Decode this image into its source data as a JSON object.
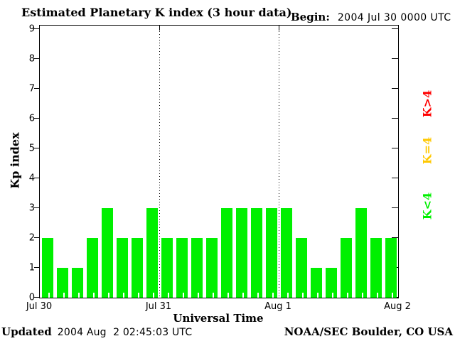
{
  "title": "Estimated Planetary K index (3 hour data)",
  "begin": {
    "label": "Begin:",
    "value": "2004 Jul 30 0000 UTC"
  },
  "footer": {
    "updated_label": "Updated",
    "updated_value": "2004 Aug  2 02:45:03 UTC",
    "credit": "NOAA/SEC Boulder, CO USA"
  },
  "chart_data": {
    "type": "bar",
    "title": "Estimated Planetary K index (3 hour data)",
    "xlabel": "Universal Time",
    "ylabel": "Kp index",
    "ylim": [
      0,
      9
    ],
    "yticks": [
      0,
      1,
      2,
      3,
      4,
      5,
      6,
      7,
      8,
      9
    ],
    "xticks": [
      "Jul 30",
      "Jul 31",
      "Aug 1",
      "Aug 2"
    ],
    "begin_utc": "2004 Jul 30 0000 UTC",
    "interval_hours": 3,
    "values": [
      2,
      1,
      1,
      2,
      3,
      2,
      2,
      3,
      2,
      2,
      2,
      2,
      3,
      3,
      3,
      3,
      3,
      2,
      1,
      1,
      2,
      3,
      2,
      2
    ],
    "bar_color": "#00f000",
    "grid": "dotted vertical lines at day boundaries",
    "legend_position": "right",
    "legend": [
      {
        "label": "K>4",
        "color": "#ff0000"
      },
      {
        "label": "K=4",
        "color": "#ffc800"
      },
      {
        "label": "K<4",
        "color": "#00f000"
      }
    ]
  }
}
